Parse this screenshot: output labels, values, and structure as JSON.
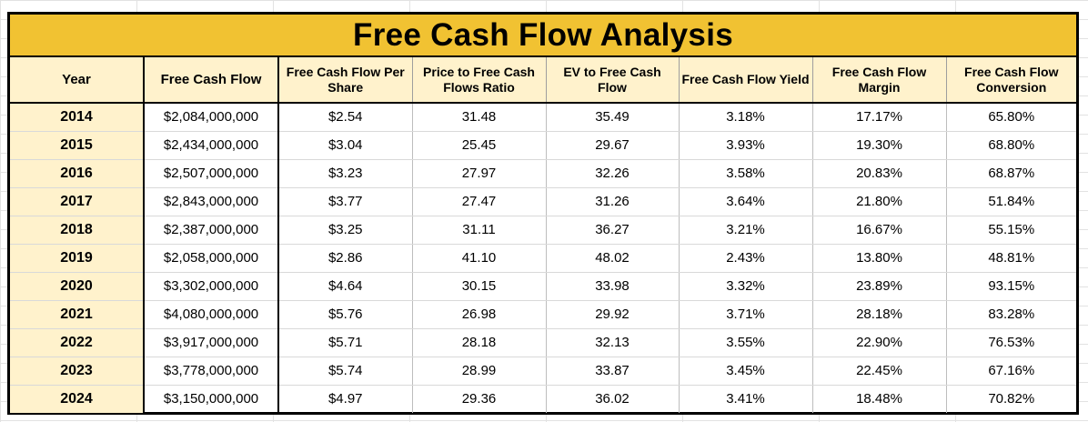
{
  "title": "Free Cash Flow Analysis",
  "headers": {
    "year": "Year",
    "fcf": "Free Cash Flow",
    "fcf_per_share": "Free Cash Flow Per Share",
    "price_to_fcf": "Price to Free Cash Flows Ratio",
    "ev_to_fcf": "EV to Free Cash Flow",
    "fcf_yield": "Free Cash Flow Yield",
    "fcf_margin": "Free Cash Flow Margin",
    "fcf_conversion": "Free Cash Flow Conversion"
  },
  "rows": [
    {
      "year": "2014",
      "fcf": "$2,084,000,000",
      "fcf_per_share": "$2.54",
      "price_to_fcf": "31.48",
      "ev_to_fcf": "35.49",
      "fcf_yield": "3.18%",
      "fcf_margin": "17.17%",
      "fcf_conversion": "65.80%"
    },
    {
      "year": "2015",
      "fcf": "$2,434,000,000",
      "fcf_per_share": "$3.04",
      "price_to_fcf": "25.45",
      "ev_to_fcf": "29.67",
      "fcf_yield": "3.93%",
      "fcf_margin": "19.30%",
      "fcf_conversion": "68.80%"
    },
    {
      "year": "2016",
      "fcf": "$2,507,000,000",
      "fcf_per_share": "$3.23",
      "price_to_fcf": "27.97",
      "ev_to_fcf": "32.26",
      "fcf_yield": "3.58%",
      "fcf_margin": "20.83%",
      "fcf_conversion": "68.87%"
    },
    {
      "year": "2017",
      "fcf": "$2,843,000,000",
      "fcf_per_share": "$3.77",
      "price_to_fcf": "27.47",
      "ev_to_fcf": "31.26",
      "fcf_yield": "3.64%",
      "fcf_margin": "21.80%",
      "fcf_conversion": "51.84%"
    },
    {
      "year": "2018",
      "fcf": "$2,387,000,000",
      "fcf_per_share": "$3.25",
      "price_to_fcf": "31.11",
      "ev_to_fcf": "36.27",
      "fcf_yield": "3.21%",
      "fcf_margin": "16.67%",
      "fcf_conversion": "55.15%"
    },
    {
      "year": "2019",
      "fcf": "$2,058,000,000",
      "fcf_per_share": "$2.86",
      "price_to_fcf": "41.10",
      "ev_to_fcf": "48.02",
      "fcf_yield": "2.43%",
      "fcf_margin": "13.80%",
      "fcf_conversion": "48.81%"
    },
    {
      "year": "2020",
      "fcf": "$3,302,000,000",
      "fcf_per_share": "$4.64",
      "price_to_fcf": "30.15",
      "ev_to_fcf": "33.98",
      "fcf_yield": "3.32%",
      "fcf_margin": "23.89%",
      "fcf_conversion": "93.15%"
    },
    {
      "year": "2021",
      "fcf": "$4,080,000,000",
      "fcf_per_share": "$5.76",
      "price_to_fcf": "26.98",
      "ev_to_fcf": "29.92",
      "fcf_yield": "3.71%",
      "fcf_margin": "28.18%",
      "fcf_conversion": "83.28%"
    },
    {
      "year": "2022",
      "fcf": "$3,917,000,000",
      "fcf_per_share": "$5.71",
      "price_to_fcf": "28.18",
      "ev_to_fcf": "32.13",
      "fcf_yield": "3.55%",
      "fcf_margin": "22.90%",
      "fcf_conversion": "76.53%"
    },
    {
      "year": "2023",
      "fcf": "$3,778,000,000",
      "fcf_per_share": "$5.74",
      "price_to_fcf": "28.99",
      "ev_to_fcf": "33.87",
      "fcf_yield": "3.45%",
      "fcf_margin": "22.45%",
      "fcf_conversion": "67.16%"
    },
    {
      "year": "2024",
      "fcf": "$3,150,000,000",
      "fcf_per_share": "$4.97",
      "price_to_fcf": "29.36",
      "ev_to_fcf": "36.02",
      "fcf_yield": "3.41%",
      "fcf_margin": "18.48%",
      "fcf_conversion": "70.82%"
    }
  ],
  "colors": {
    "title_fill": "#f1c232",
    "header_fill": "#fff2cc",
    "border": "#000000"
  }
}
